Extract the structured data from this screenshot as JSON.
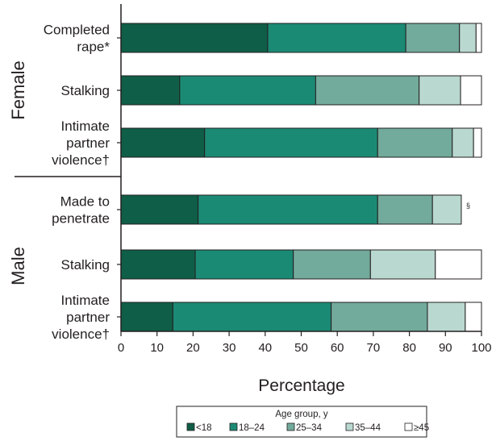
{
  "chart_data": {
    "type": "bar",
    "orientation": "horizontal",
    "stacked": true,
    "xlabel": "Percentage",
    "xlim": [
      0,
      100
    ],
    "xticks": [
      "0",
      "10",
      "20",
      "30",
      "40",
      "50",
      "60",
      "70",
      "80",
      "90",
      "100"
    ],
    "grid": false,
    "legend": {
      "title": "Age group, y",
      "position": "bottom"
    },
    "groups": [
      {
        "label": "Female",
        "categories": [
          {
            "lines": [
              "Completed",
              "rape*"
            ],
            "note": ""
          },
          {
            "lines": [
              "Stalking"
            ],
            "note": ""
          },
          {
            "lines": [
              "Intimate",
              "partner",
              "violence†"
            ],
            "note": ""
          }
        ]
      },
      {
        "label": "Male",
        "categories": [
          {
            "lines": [
              "Made to",
              "penetrate"
            ],
            "note": "§"
          },
          {
            "lines": [
              "Stalking"
            ],
            "note": ""
          },
          {
            "lines": [
              "Intimate",
              "partner",
              "violence†"
            ],
            "note": ""
          }
        ]
      }
    ],
    "series": [
      {
        "name": "<18",
        "color": "#0f5e47",
        "values": [
          40.7,
          16.3,
          23.2,
          21.4,
          20.6,
          14.4
        ]
      },
      {
        "name": "18–24",
        "color": "#1b8a74",
        "values": [
          38.3,
          37.7,
          48.0,
          49.8,
          27.2,
          43.9
        ]
      },
      {
        "name": "25–34",
        "color": "#72aa9b",
        "values": [
          14.9,
          28.7,
          20.7,
          15.2,
          21.4,
          26.7
        ]
      },
      {
        "name": "35–44",
        "color": "#b9d8cf",
        "values": [
          4.6,
          11.5,
          5.9,
          8.0,
          18.0,
          10.5
        ]
      },
      {
        "name": "≥45",
        "color": "#ffffff",
        "values": [
          1.5,
          5.8,
          2.2,
          null,
          12.8,
          4.5
        ]
      }
    ]
  }
}
